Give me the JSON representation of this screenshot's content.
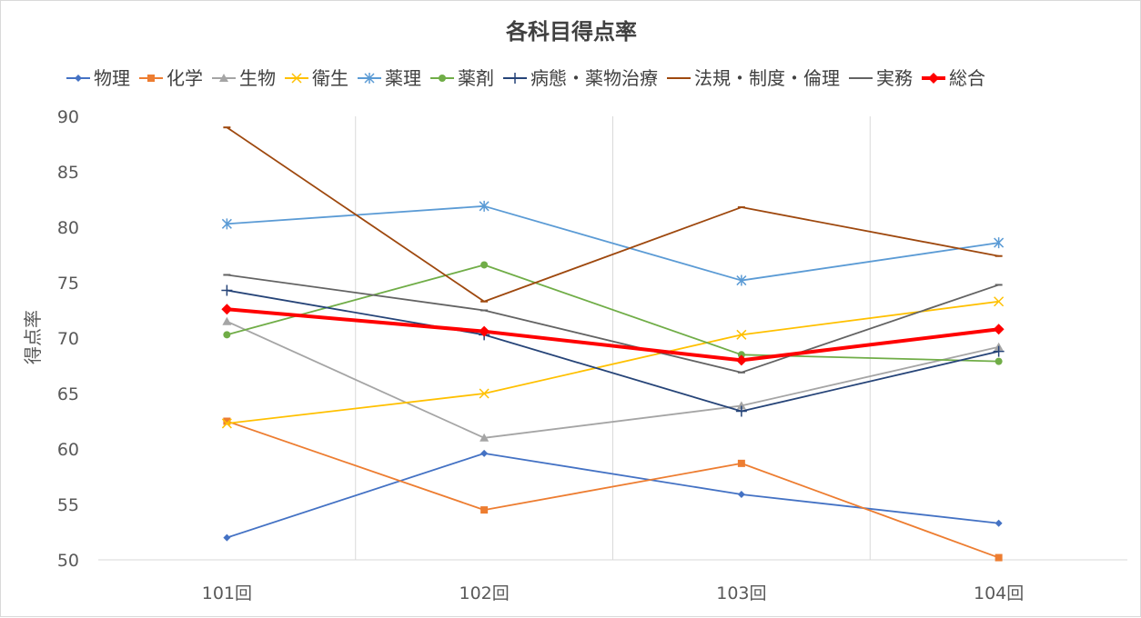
{
  "chart_data": {
    "type": "line",
    "title": "各科目得点率",
    "ylabel": "得点率",
    "xlabel": "",
    "categories": [
      "101回",
      "102回",
      "103回",
      "104回"
    ],
    "ylim": [
      50,
      90
    ],
    "yticks": [
      50,
      55,
      60,
      65,
      70,
      75,
      80,
      85,
      90
    ],
    "grid": "vertical",
    "legend": "top",
    "series": [
      {
        "name": "物理",
        "color": "#4472C4",
        "marker": "diamond",
        "values": [
          52.0,
          59.6,
          55.9,
          53.3
        ]
      },
      {
        "name": "化学",
        "color": "#ED7D31",
        "marker": "square",
        "values": [
          62.5,
          54.5,
          58.7,
          50.2
        ]
      },
      {
        "name": "生物",
        "color": "#A5A5A5",
        "marker": "triangle",
        "values": [
          71.5,
          61.0,
          63.9,
          69.2
        ]
      },
      {
        "name": "衛生",
        "color": "#FFC000",
        "marker": "x",
        "values": [
          62.3,
          65.0,
          70.3,
          73.3
        ]
      },
      {
        "name": "薬理",
        "color": "#5B9BD5",
        "marker": "star",
        "values": [
          80.3,
          81.9,
          75.2,
          78.6
        ]
      },
      {
        "name": "薬剤",
        "color": "#70AD47",
        "marker": "circle",
        "values": [
          70.3,
          76.6,
          68.5,
          67.9
        ]
      },
      {
        "name": "病態・薬物治療",
        "color": "#264478",
        "marker": "plus",
        "values": [
          74.3,
          70.3,
          63.4,
          68.8
        ]
      },
      {
        "name": "法規・制度・倫理",
        "color": "#9E480E",
        "marker": "dash",
        "values": [
          89.0,
          73.3,
          81.8,
          77.4
        ]
      },
      {
        "name": "実務",
        "color": "#636363",
        "marker": "dash",
        "values": [
          75.7,
          72.5,
          66.9,
          74.8
        ]
      },
      {
        "name": "総合",
        "color": "#FF0000",
        "marker": "diamond",
        "bold": true,
        "values": [
          72.6,
          70.6,
          68.0,
          70.8
        ]
      }
    ]
  }
}
